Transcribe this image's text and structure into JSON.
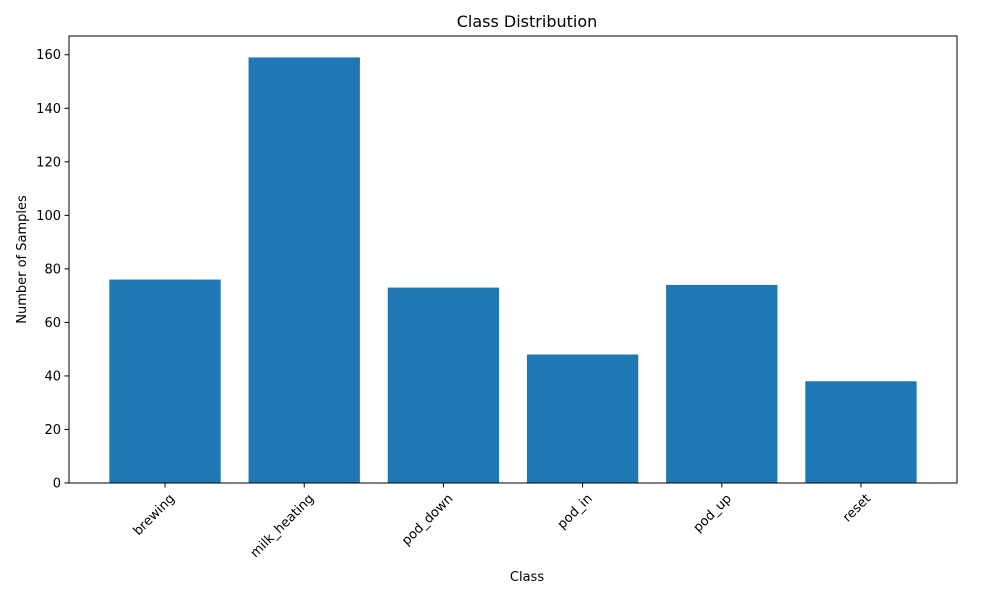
{
  "chart_data": {
    "type": "bar",
    "title": "Class Distribution",
    "xlabel": "Class",
    "ylabel": "Number of Samples",
    "categories": [
      "brewing",
      "milk_heating",
      "pod_down",
      "pod_in",
      "pod_up",
      "reset"
    ],
    "values": [
      76,
      159,
      73,
      48,
      74,
      38
    ],
    "ylim": [
      0,
      167
    ],
    "yticks": [
      0,
      20,
      40,
      60,
      80,
      100,
      120,
      140,
      160
    ],
    "xtick_rotation_deg": 45,
    "bar_color": "#1f77b4",
    "grid": false,
    "legend": "none"
  }
}
